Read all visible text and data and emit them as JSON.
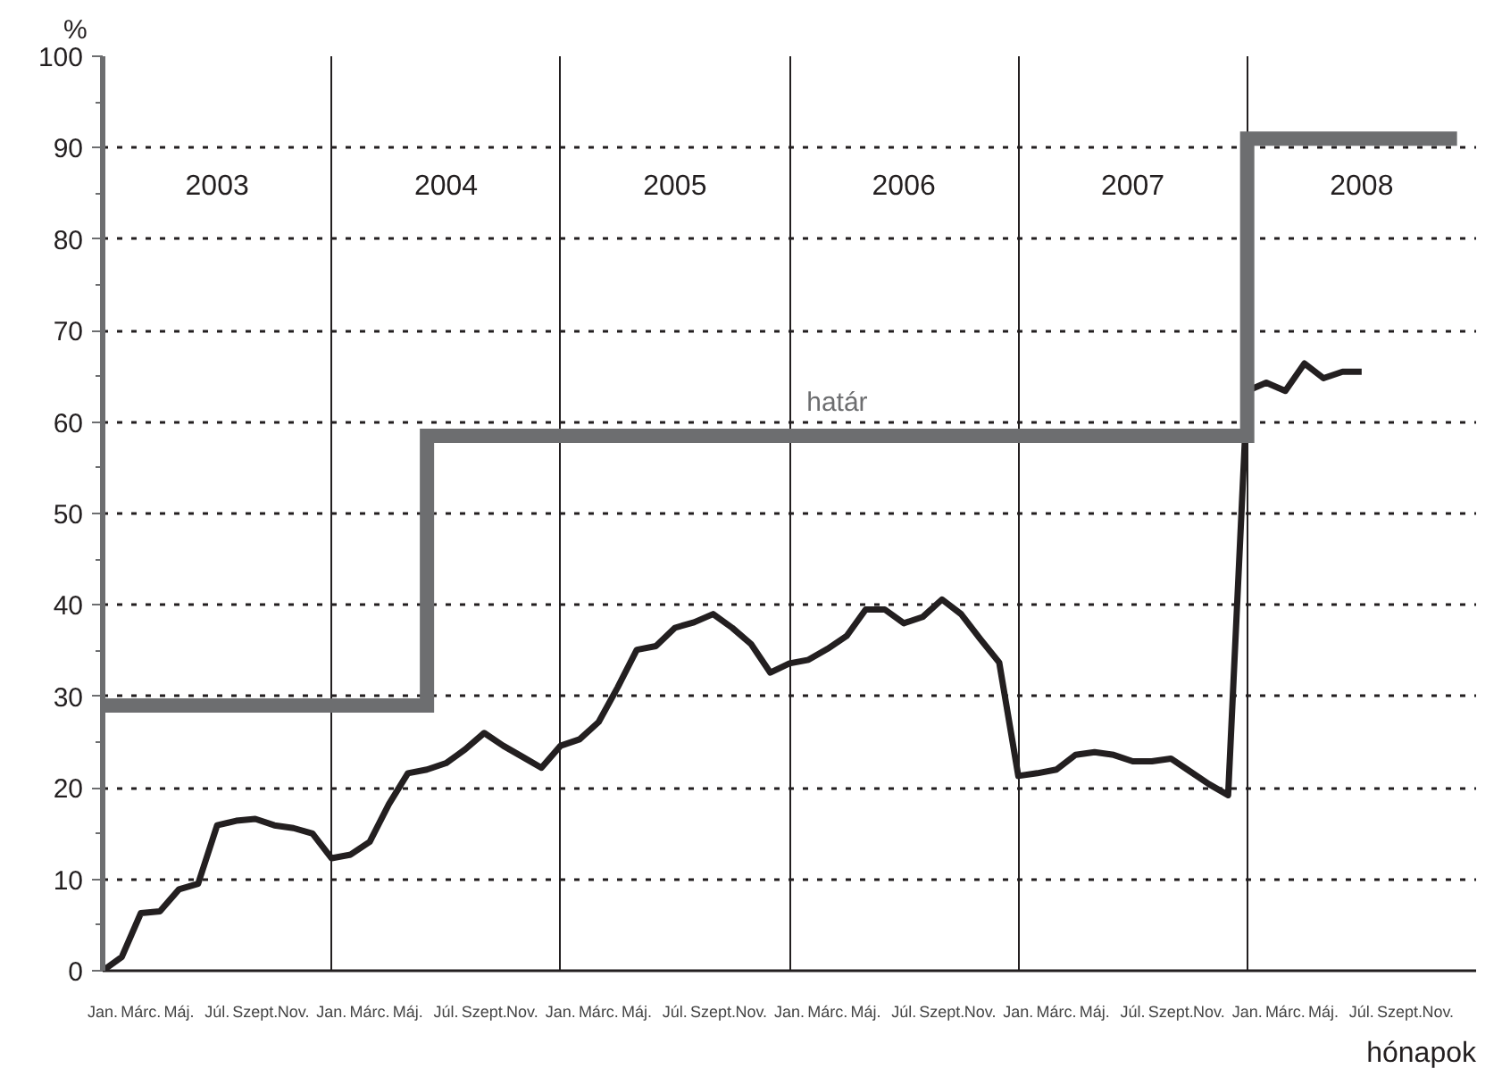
{
  "chart_data": {
    "type": "line",
    "ylabel": "%",
    "xlabel": "hónapok",
    "ylim": [
      0,
      100
    ],
    "yticks": [
      0,
      10,
      20,
      30,
      40,
      50,
      60,
      70,
      80,
      90,
      100
    ],
    "categories": [
      "Jan.",
      null,
      "Márc.",
      null,
      "Máj.",
      null,
      "Júl.",
      null,
      "Szept.",
      null,
      "Nov.",
      null,
      "Jan.",
      null,
      "Márc.",
      null,
      "Máj.",
      null,
      "Júl.",
      null,
      "Szept.",
      null,
      "Nov.",
      null,
      "Jan.",
      null,
      "Márc.",
      null,
      "Máj.",
      null,
      "Júl.",
      null,
      "Szept.",
      null,
      "Nov.",
      null,
      "Jan.",
      null,
      "Márc.",
      null,
      "Máj.",
      null,
      "Júl.",
      null,
      "Szept.",
      null,
      "Nov.",
      null,
      "Jan.",
      null,
      "Márc.",
      null,
      "Máj.",
      null,
      "Júl.",
      null,
      "Szept.",
      null,
      "Nov.",
      null,
      "Jan.",
      null,
      "Márc.",
      null,
      "Máj.",
      null,
      "Júl.",
      null,
      "Szept.",
      null,
      "Nov.",
      null
    ],
    "grid": true,
    "line_style": "solid",
    "annotations": [
      "2003",
      "2004",
      "2005",
      "2006",
      "2007",
      "2008"
    ],
    "series": [
      {
        "color": "#231f20",
        "values": [
          0,
          1.5,
          6.3,
          6.5,
          8.9,
          9.5,
          15.9,
          16.4,
          16.6,
          15.9,
          15.6,
          15.0,
          12.3,
          12.7,
          14.1,
          18.2,
          21.6,
          22.0,
          22.7,
          24.2,
          26.0,
          24.6,
          23.4,
          22.2,
          24.6,
          25.3,
          27.2,
          31.0,
          35.1,
          35.5,
          37.5,
          38.1,
          39.0,
          37.5,
          35.7,
          32.6,
          33.6,
          34.0,
          35.2,
          36.6,
          39.5,
          39.5,
          38.0,
          38.7,
          40.6,
          39.0,
          36.3,
          33.7,
          21.3,
          21.6,
          22.0,
          23.6,
          23.9,
          23.6,
          22.9,
          22.9,
          23.2,
          21.8,
          20.4,
          19.2,
          63.4,
          64.3,
          63.4,
          66.4,
          64.8,
          65.5,
          65.5,
          null,
          null,
          null,
          null,
          null
        ]
      },
      {
        "type": "step",
        "name": "határ",
        "color": "#6d6e70",
        "values": [
          29,
          29,
          29,
          29,
          29,
          29,
          29,
          29,
          29,
          29,
          29,
          29,
          29,
          29,
          29,
          29,
          29,
          58.5,
          58.5,
          58.5,
          58.5,
          58.5,
          58.5,
          58.5,
          58.5,
          58.5,
          58.5,
          58.5,
          58.5,
          58.5,
          58.5,
          58.5,
          58.5,
          58.5,
          58.5,
          58.5,
          58.5,
          58.5,
          58.5,
          58.5,
          58.5,
          58.5,
          58.5,
          58.5,
          58.5,
          58.5,
          58.5,
          58.5,
          58.5,
          58.5,
          58.5,
          58.5,
          58.5,
          58.5,
          58.5,
          58.5,
          58.5,
          58.5,
          58.5,
          58.5,
          91,
          91,
          91,
          91,
          91,
          91,
          91,
          91,
          91,
          91,
          91,
          91
        ]
      }
    ]
  }
}
